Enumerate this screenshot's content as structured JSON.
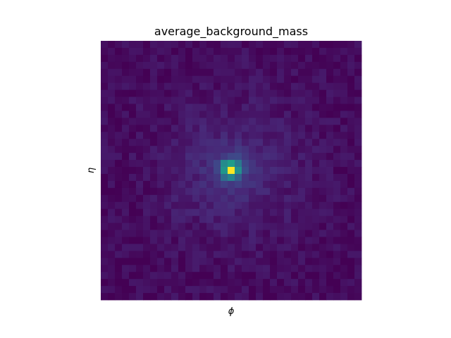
{
  "chart_data": {
    "type": "heatmap",
    "title": "average_background_mass",
    "xlabel": "ϕ",
    "ylabel": "η",
    "grid_size": [
      37,
      37
    ],
    "colormap": "viridis",
    "xticks": "none",
    "yticks": "none",
    "colorbar": false,
    "peak": {
      "col": 18,
      "row": 18,
      "value": 1.0
    },
    "peak_block": {
      "cols": [
        17,
        19
      ],
      "rows": [
        17,
        19
      ],
      "values": [
        [
          0.48,
          0.55,
          0.4
        ],
        [
          0.52,
          1.0,
          0.5
        ],
        [
          0.35,
          0.45,
          0.3
        ]
      ]
    },
    "radial_profile": [
      {
        "r": 0,
        "value": 1.0
      },
      {
        "r": 1,
        "value": 0.32
      },
      {
        "r": 2,
        "value": 0.2
      },
      {
        "r": 3,
        "value": 0.14
      },
      {
        "r": 5,
        "value": 0.1
      },
      {
        "r": 8,
        "value": 0.07
      },
      {
        "r": 12,
        "value": 0.045
      },
      {
        "r": 18,
        "value": 0.03
      },
      {
        "r": 26,
        "value": 0.02
      }
    ],
    "noise_amplitude": 0.04
  },
  "colors": {
    "colormap_stops": [
      "#440154",
      "#482878",
      "#3e4989",
      "#31688e",
      "#26828e",
      "#1f9e89",
      "#35b779",
      "#6ece58",
      "#b5de2b",
      "#fde725"
    ],
    "background": "#ffffff"
  }
}
